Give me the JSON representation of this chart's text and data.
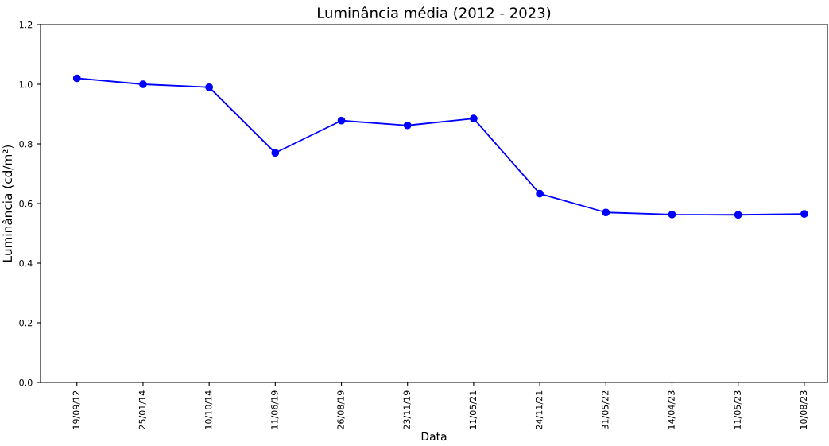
{
  "chart_data": {
    "type": "line",
    "title": "Luminância média (2012 - 2023)",
    "xlabel": "Data",
    "ylabel": "Luminância (cd/m²)",
    "categories": [
      "19/09/12",
      "25/01/14",
      "10/10/14",
      "11/06/19",
      "26/08/19",
      "23/11/19",
      "11/05/21",
      "24/11/21",
      "31/05/22",
      "14/04/23",
      "11/05/23",
      "10/08/23"
    ],
    "series": [
      {
        "color": "#0000ff",
        "values": [
          1.02,
          1.0,
          0.99,
          0.77,
          0.878,
          0.862,
          0.885,
          0.633,
          0.57,
          0.563,
          0.562,
          0.565
        ]
      }
    ],
    "ylim": [
      0,
      1.2
    ],
    "yticks": [
      {
        "value": 0,
        "label": "0.0"
      },
      {
        "value": 0.2,
        "label": "0.2"
      },
      {
        "value": 0.4,
        "label": "0.4"
      },
      {
        "value": 0.6,
        "label": "0.6"
      },
      {
        "value": 0.8,
        "label": "0.8"
      },
      {
        "value": 1.0,
        "label": "1.0"
      },
      {
        "value": 1.2,
        "label": "1.2"
      }
    ],
    "marker": "circle",
    "line_style": "solid",
    "grid": false,
    "legend": false
  }
}
